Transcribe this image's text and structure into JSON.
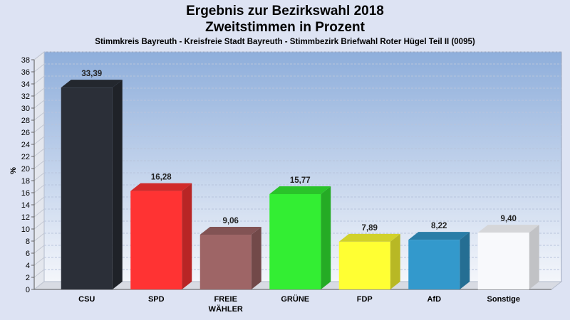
{
  "chart_data": {
    "type": "bar",
    "title_line1": "Ergebnis zur Bezirkswahl 2018",
    "title_line2": "Zweitstimmen in Prozent",
    "subtitle": "Stimmkreis Bayreuth - Kreisfreie Stadt Bayreuth - Stimmbezirk Briefwahl Roter Hügel Teil II (0095)",
    "ylabel": "%",
    "ylim": [
      0,
      38
    ],
    "yticks": [
      "0",
      "2",
      "4",
      "6",
      "8",
      "10",
      "12",
      "14",
      "16",
      "18",
      "20",
      "22",
      "24",
      "26",
      "28",
      "30",
      "32",
      "34",
      "36",
      "38"
    ],
    "grid": true,
    "categories": [
      "CSU",
      "SPD",
      "FREIE WÄHLER",
      "GRÜNE",
      "FDP",
      "AfD",
      "Sonstige"
    ],
    "category_lines": [
      [
        "CSU"
      ],
      [
        "SPD"
      ],
      [
        "FREIE",
        "WÄHLER"
      ],
      [
        "GRÜNE"
      ],
      [
        "FDP"
      ],
      [
        "AfD"
      ],
      [
        "Sonstige"
      ]
    ],
    "values": [
      33.39,
      16.28,
      9.06,
      15.77,
      7.89,
      8.22,
      9.4
    ],
    "value_labels": [
      "33,39",
      "16,28",
      "9,06",
      "15,77",
      "7,89",
      "8,22",
      "9,40"
    ],
    "colors": [
      "#2b2f38",
      "#ff3333",
      "#9e6566",
      "#33ee33",
      "#ffff33",
      "#3399cc",
      "#f8f9fc"
    ]
  }
}
